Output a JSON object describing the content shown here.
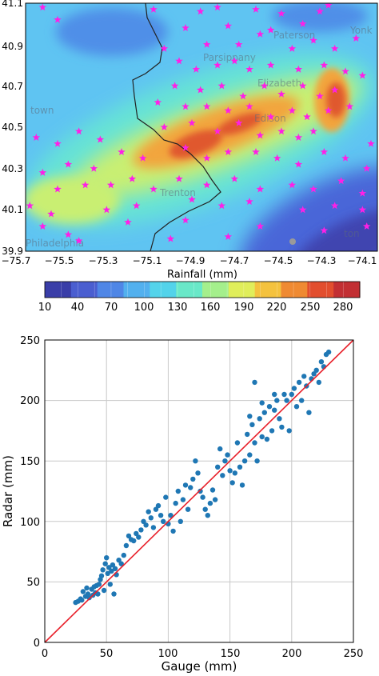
{
  "chart_data": [
    {
      "type": "heatmap",
      "title": "",
      "xlabel": "",
      "ylabel": "",
      "xlim": [
        -75.7,
        -74.05
      ],
      "ylim": [
        39.9,
        41.1
      ],
      "x_ticks": [
        "−75.7",
        "−75.5",
        "−75.3",
        "−75.1",
        "−74.9",
        "−74.7",
        "−74.5",
        "−74.3",
        "−74.1"
      ],
      "y_ticks": [
        "41.1",
        "40.9",
        "40.7",
        "40.5",
        "40.3",
        "40.1",
        "39.9"
      ],
      "colorbar": {
        "label": "Rainfall (mm)",
        "ticks": [
          "10",
          "40",
          "70",
          "100",
          "130",
          "160",
          "190",
          "220",
          "250",
          "280"
        ],
        "min": 10,
        "max": 295,
        "colors": [
          "#3a3ea8",
          "#4a5ed0",
          "#4f86e6",
          "#52b0ee",
          "#53d3ea",
          "#69e8c8",
          "#a4ef8c",
          "#e0ee5a",
          "#f4c23e",
          "#ef8a32",
          "#e24e2e",
          "#c22f33"
        ]
      },
      "place_names": [
        "Paterson",
        "Yonk",
        "Parsippany",
        "Elizabeth",
        "town",
        "Edison",
        "Trenton",
        "Philadelphia",
        "ton"
      ],
      "marker": {
        "shape": "star",
        "color": "#ff1fe6"
      },
      "gauges": [
        [
          -75.62,
          41.08
        ],
        [
          -75.55,
          41.02
        ],
        [
          -75.1,
          41.07
        ],
        [
          -74.88,
          41.06
        ],
        [
          -74.8,
          41.08
        ],
        [
          -74.62,
          41.07
        ],
        [
          -74.5,
          41.05
        ],
        [
          -74.32,
          41.06
        ],
        [
          -74.28,
          41.09
        ],
        [
          -74.4,
          41.0
        ],
        [
          -74.95,
          40.98
        ],
        [
          -74.75,
          40.99
        ],
        [
          -74.6,
          40.95
        ],
        [
          -74.55,
          40.97
        ],
        [
          -74.35,
          40.92
        ],
        [
          -74.25,
          40.88
        ],
        [
          -74.15,
          40.93
        ],
        [
          -74.45,
          40.88
        ],
        [
          -74.7,
          40.9
        ],
        [
          -74.85,
          40.9
        ],
        [
          -75.05,
          40.88
        ],
        [
          -74.98,
          40.82
        ],
        [
          -74.9,
          40.78
        ],
        [
          -74.8,
          40.8
        ],
        [
          -74.72,
          40.82
        ],
        [
          -74.65,
          40.78
        ],
        [
          -74.55,
          40.8
        ],
        [
          -74.42,
          40.78
        ],
        [
          -74.3,
          40.8
        ],
        [
          -74.2,
          40.77
        ],
        [
          -74.12,
          40.75
        ],
        [
          -75.0,
          40.7
        ],
        [
          -74.88,
          40.68
        ],
        [
          -74.78,
          40.7
        ],
        [
          -74.68,
          40.65
        ],
        [
          -74.58,
          40.7
        ],
        [
          -74.5,
          40.66
        ],
        [
          -74.4,
          40.7
        ],
        [
          -74.32,
          40.65
        ],
        [
          -74.25,
          40.68
        ],
        [
          -75.08,
          40.62
        ],
        [
          -74.95,
          40.6
        ],
        [
          -74.85,
          40.6
        ],
        [
          -74.75,
          40.58
        ],
        [
          -74.65,
          40.6
        ],
        [
          -74.55,
          40.55
        ],
        [
          -74.45,
          40.58
        ],
        [
          -74.38,
          40.55
        ],
        [
          -74.28,
          40.58
        ],
        [
          -74.18,
          40.6
        ],
        [
          -75.05,
          40.5
        ],
        [
          -74.92,
          40.52
        ],
        [
          -74.8,
          40.48
        ],
        [
          -74.7,
          40.52
        ],
        [
          -74.6,
          40.46
        ],
        [
          -74.5,
          40.48
        ],
        [
          -74.42,
          40.45
        ],
        [
          -74.35,
          40.48
        ],
        [
          -75.65,
          40.45
        ],
        [
          -75.55,
          40.42
        ],
        [
          -75.45,
          40.48
        ],
        [
          -75.35,
          40.44
        ],
        [
          -75.25,
          40.38
        ],
        [
          -75.15,
          40.35
        ],
        [
          -75.38,
          40.3
        ],
        [
          -75.5,
          40.32
        ],
        [
          -75.62,
          40.28
        ],
        [
          -74.95,
          40.4
        ],
        [
          -74.85,
          40.35
        ],
        [
          -74.75,
          40.38
        ],
        [
          -74.62,
          40.38
        ],
        [
          -74.52,
          40.35
        ],
        [
          -74.42,
          40.32
        ],
        [
          -74.3,
          40.38
        ],
        [
          -74.2,
          40.35
        ],
        [
          -74.1,
          40.3
        ],
        [
          -75.55,
          40.2
        ],
        [
          -75.42,
          40.22
        ],
        [
          -75.3,
          40.22
        ],
        [
          -75.2,
          40.25
        ],
        [
          -75.1,
          40.2
        ],
        [
          -74.98,
          40.25
        ],
        [
          -74.85,
          40.22
        ],
        [
          -74.72,
          40.25
        ],
        [
          -74.6,
          40.2
        ],
        [
          -74.45,
          40.22
        ],
        [
          -74.35,
          40.2
        ],
        [
          -74.22,
          40.24
        ],
        [
          -75.68,
          40.12
        ],
        [
          -75.58,
          40.08
        ],
        [
          -75.32,
          40.1
        ],
        [
          -75.18,
          40.12
        ],
        [
          -74.92,
          40.15
        ],
        [
          -74.78,
          40.12
        ],
        [
          -74.65,
          40.14
        ],
        [
          -74.4,
          40.1
        ],
        [
          -74.25,
          40.12
        ],
        [
          -74.12,
          40.1
        ],
        [
          -75.62,
          40.02
        ],
        [
          -75.5,
          39.98
        ],
        [
          -75.22,
          40.04
        ],
        [
          -74.95,
          40.05
        ],
        [
          -74.6,
          40.02
        ],
        [
          -74.3,
          40.0
        ],
        [
          -74.1,
          40.02
        ],
        [
          -75.45,
          39.95
        ],
        [
          -75.02,
          39.96
        ],
        [
          -74.75,
          39.97
        ],
        [
          -74.12,
          40.18
        ],
        [
          -74.08,
          40.42
        ]
      ]
    },
    {
      "type": "scatter",
      "title": "",
      "xlabel": "Gauge (mm)",
      "ylabel": "Radar (mm)",
      "xlim": [
        0,
        250
      ],
      "ylim": [
        0,
        250
      ],
      "x_ticks": [
        0,
        50,
        100,
        150,
        200,
        250
      ],
      "y_ticks": [
        0,
        50,
        100,
        150,
        200,
        250
      ],
      "grid": true,
      "point_color": "#1f77b4",
      "line": {
        "type": "1:1",
        "color": "#e8202a",
        "points": [
          [
            0,
            0
          ],
          [
            250,
            250
          ]
        ]
      },
      "points": [
        [
          25,
          33
        ],
        [
          27,
          34
        ],
        [
          29,
          36
        ],
        [
          30,
          35
        ],
        [
          31,
          42
        ],
        [
          33,
          38
        ],
        [
          34,
          45
        ],
        [
          35,
          40
        ],
        [
          36,
          37
        ],
        [
          38,
          44
        ],
        [
          39,
          39
        ],
        [
          40,
          46
        ],
        [
          41,
          41
        ],
        [
          42,
          47
        ],
        [
          43,
          40
        ],
        [
          44,
          48
        ],
        [
          45,
          52
        ],
        [
          46,
          55
        ],
        [
          47,
          60
        ],
        [
          48,
          43
        ],
        [
          49,
          65
        ],
        [
          50,
          70
        ],
        [
          51,
          57
        ],
        [
          52,
          62
        ],
        [
          53,
          48
        ],
        [
          54,
          59
        ],
        [
          55,
          64
        ],
        [
          56,
          40
        ],
        [
          57,
          61
        ],
        [
          58,
          56
        ],
        [
          60,
          68
        ],
        [
          62,
          65
        ],
        [
          64,
          72
        ],
        [
          66,
          80
        ],
        [
          68,
          88
        ],
        [
          70,
          85
        ],
        [
          72,
          84
        ],
        [
          74,
          90
        ],
        [
          76,
          87
        ],
        [
          78,
          93
        ],
        [
          80,
          100
        ],
        [
          82,
          97
        ],
        [
          84,
          108
        ],
        [
          86,
          103
        ],
        [
          88,
          95
        ],
        [
          90,
          110
        ],
        [
          92,
          113
        ],
        [
          94,
          105
        ],
        [
          96,
          100
        ],
        [
          98,
          120
        ],
        [
          100,
          98
        ],
        [
          102,
          105
        ],
        [
          104,
          92
        ],
        [
          106,
          115
        ],
        [
          108,
          125
        ],
        [
          110,
          100
        ],
        [
          112,
          118
        ],
        [
          114,
          130
        ],
        [
          116,
          110
        ],
        [
          118,
          128
        ],
        [
          120,
          135
        ],
        [
          122,
          150
        ],
        [
          124,
          140
        ],
        [
          126,
          125
        ],
        [
          128,
          120
        ],
        [
          130,
          110
        ],
        [
          132,
          105
        ],
        [
          134,
          115
        ],
        [
          136,
          126
        ],
        [
          138,
          118
        ],
        [
          140,
          145
        ],
        [
          142,
          160
        ],
        [
          144,
          138
        ],
        [
          146,
          150
        ],
        [
          148,
          155
        ],
        [
          150,
          142
        ],
        [
          152,
          132
        ],
        [
          154,
          140
        ],
        [
          156,
          165
        ],
        [
          158,
          145
        ],
        [
          160,
          130
        ],
        [
          162,
          150
        ],
        [
          164,
          172
        ],
        [
          166,
          155
        ],
        [
          168,
          180
        ],
        [
          170,
          165
        ],
        [
          172,
          150
        ],
        [
          174,
          185
        ],
        [
          176,
          170
        ],
        [
          178,
          190
        ],
        [
          180,
          168
        ],
        [
          182,
          195
        ],
        [
          184,
          175
        ],
        [
          186,
          192
        ],
        [
          188,
          200
        ],
        [
          190,
          185
        ],
        [
          192,
          178
        ],
        [
          194,
          205
        ],
        [
          196,
          200
        ],
        [
          198,
          175
        ],
        [
          200,
          205
        ],
        [
          202,
          210
        ],
        [
          204,
          195
        ],
        [
          206,
          215
        ],
        [
          208,
          200
        ],
        [
          210,
          220
        ],
        [
          212,
          212
        ],
        [
          214,
          190
        ],
        [
          216,
          218
        ],
        [
          218,
          222
        ],
        [
          220,
          225
        ],
        [
          222,
          215
        ],
        [
          224,
          232
        ],
        [
          226,
          228
        ],
        [
          228,
          238
        ],
        [
          230,
          240
        ],
        [
          186,
          205
        ],
        [
          176,
          198
        ],
        [
          170,
          215
        ],
        [
          166,
          187
        ]
      ]
    }
  ]
}
